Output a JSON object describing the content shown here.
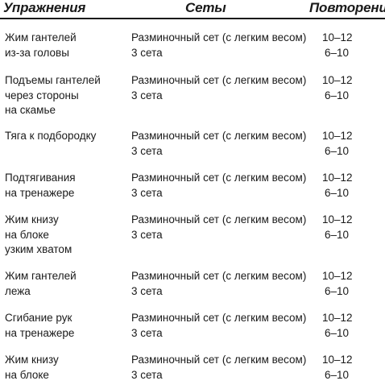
{
  "headers": {
    "exercise": "Упражнения",
    "sets": "Сеты",
    "reps": "Повторения"
  },
  "rows": [
    {
      "name": [
        "Жим гантелей",
        "из-за головы"
      ],
      "sets": [
        "Разминочный сет (с легким весом)",
        "3 сета"
      ],
      "reps": [
        "10–12",
        "6–10"
      ]
    },
    {
      "name": [
        "Подъемы гантелей",
        "через стороны",
        "на скамье"
      ],
      "sets": [
        "Разминочный сет (с легким весом)",
        "3 сета"
      ],
      "reps": [
        "10–12",
        "6–10"
      ]
    },
    {
      "name": [
        "Тяга к подбородку"
      ],
      "sets": [
        "Разминочный сет (с легким весом)",
        "3 сета"
      ],
      "reps": [
        "10–12",
        "6–10"
      ]
    },
    {
      "name": [
        "Подтягивания",
        "на тренажере"
      ],
      "sets": [
        "Разминочный сет (с легким весом)",
        "3 сета"
      ],
      "reps": [
        "10–12",
        "6–10"
      ]
    },
    {
      "name": [
        "Жим книзу",
        "на блоке",
        "узким хватом"
      ],
      "sets": [
        "Разминочный сет (с легким весом)",
        "3 сета"
      ],
      "reps": [
        "10–12",
        "6–10"
      ]
    },
    {
      "name": [
        "Жим гантелей",
        "лежа"
      ],
      "sets": [
        "Разминочный сет (с легким весом)",
        "3 сета"
      ],
      "reps": [
        "10–12",
        "6–10"
      ]
    },
    {
      "name": [
        "Сгибание рук",
        "на тренажере"
      ],
      "sets": [
        "Разминочный сет (с легким весом)",
        "3 сета"
      ],
      "reps": [
        "10–12",
        "6–10"
      ]
    },
    {
      "name": [
        "Жим книзу",
        "на блоке"
      ],
      "sets": [
        "Разминочный сет (с легким весом)",
        "3 сета"
      ],
      "reps": [
        "10–12",
        "6–10"
      ]
    }
  ]
}
